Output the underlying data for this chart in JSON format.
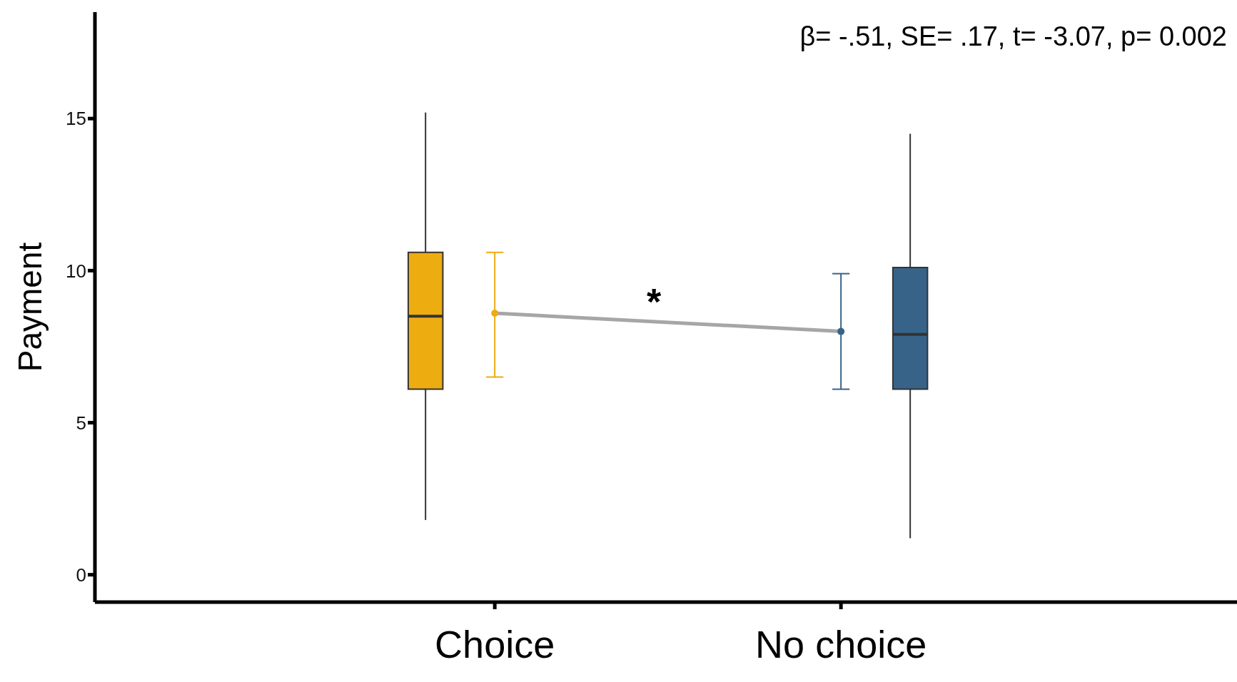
{
  "chart_data": {
    "type": "box",
    "categories": [
      "Choice",
      "No choice"
    ],
    "ylabel": "Payment",
    "ylim": [
      -0.9,
      18.5
    ],
    "yticks": [
      0,
      5,
      10,
      15
    ],
    "colors": [
      "#edac10",
      "#376389"
    ],
    "boxes": [
      {
        "low": 1.8,
        "q1": 6.1,
        "median": 8.5,
        "q3": 10.6,
        "high": 15.2
      },
      {
        "low": 1.2,
        "q1": 6.1,
        "median": 7.9,
        "q3": 10.1,
        "high": 14.5
      }
    ],
    "series": [
      {
        "type": "line",
        "color": "#a6a6a6",
        "values": [
          8.6,
          8.0
        ]
      },
      {
        "type": "scatter",
        "colors": [
          "#edac10",
          "#376389"
        ],
        "values": [
          8.6,
          8.0
        ],
        "errors": [
          [
            6.5,
            10.6
          ],
          [
            6.1,
            9.9
          ]
        ]
      }
    ],
    "annotations": [
      "β= -.51, SE= .17, t= -3.07, p= 0.002",
      "*"
    ]
  }
}
